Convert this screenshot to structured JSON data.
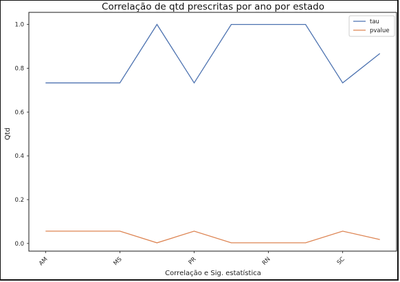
{
  "chart_data": {
    "type": "line",
    "title": "Correlação de qtd prescritas por ano por estado",
    "xlabel": "Correlação e Sig. estatística",
    "ylabel": "Qtd",
    "x_tick_labels": [
      "AM",
      "MS",
      "PR",
      "RN",
      "SC"
    ],
    "x_tick_positions": [
      0,
      2,
      4,
      6,
      8
    ],
    "x": [
      0,
      1,
      2,
      3,
      4,
      5,
      6,
      7,
      8,
      9
    ],
    "xlim": [
      -0.45,
      9.45
    ],
    "ylim": [
      -0.035,
      1.055
    ],
    "y_ticks": [
      0.0,
      0.2,
      0.4,
      0.6,
      0.8,
      1.0
    ],
    "y_tick_labels": [
      "0.0",
      "0.2",
      "0.4",
      "0.6",
      "0.8",
      "1.0"
    ],
    "grid": false,
    "legend_position": "top-right",
    "series": [
      {
        "name": "tau",
        "color": "#4c72b0",
        "values": [
          0.733,
          0.733,
          0.733,
          1.0,
          0.733,
          1.0,
          1.0,
          1.0,
          0.733,
          0.867
        ]
      },
      {
        "name": "pvalue",
        "color": "#dd8452",
        "values": [
          0.056,
          0.056,
          0.056,
          0.003,
          0.056,
          0.003,
          0.003,
          0.003,
          0.056,
          0.018
        ]
      }
    ]
  }
}
